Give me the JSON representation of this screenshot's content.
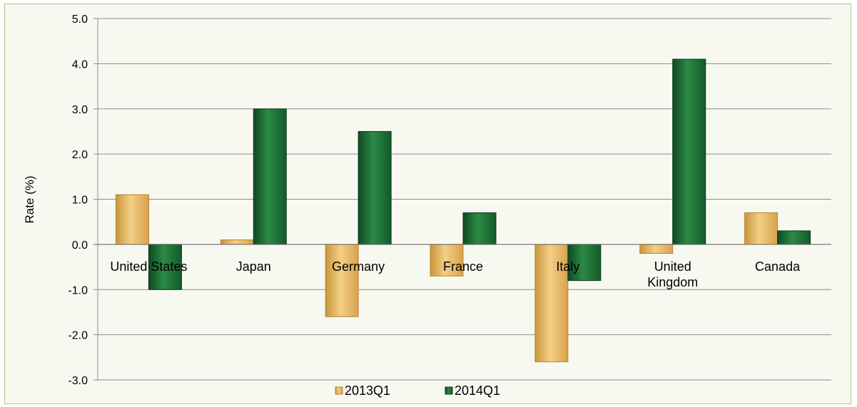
{
  "chart_data": {
    "type": "bar",
    "title": "",
    "xlabel": "",
    "ylabel": "Rate (%)",
    "ylim": [
      -3.0,
      5.0
    ],
    "yticks": [
      "5.0",
      "4.0",
      "3.0",
      "2.0",
      "1.0",
      "0.0",
      "-1.0",
      "-2.0",
      "-3.0"
    ],
    "ytick_values": [
      5,
      4,
      3,
      2,
      1,
      0,
      -1,
      -2,
      -3
    ],
    "categories": [
      "United States",
      "Japan",
      "Germany",
      "France",
      "Italy",
      "United\nKingdom",
      "Canada"
    ],
    "series": [
      {
        "name": "2013Q1",
        "values": [
          1.1,
          0.1,
          -1.6,
          -0.7,
          -2.6,
          -0.2,
          0.7
        ],
        "color": "#e8b45a"
      },
      {
        "name": "2014Q1",
        "values": [
          -1.0,
          3.0,
          2.5,
          0.7,
          -0.8,
          4.1,
          0.3
        ],
        "color": "#1e6b34"
      }
    ],
    "grid": true,
    "legend": "bottom"
  }
}
